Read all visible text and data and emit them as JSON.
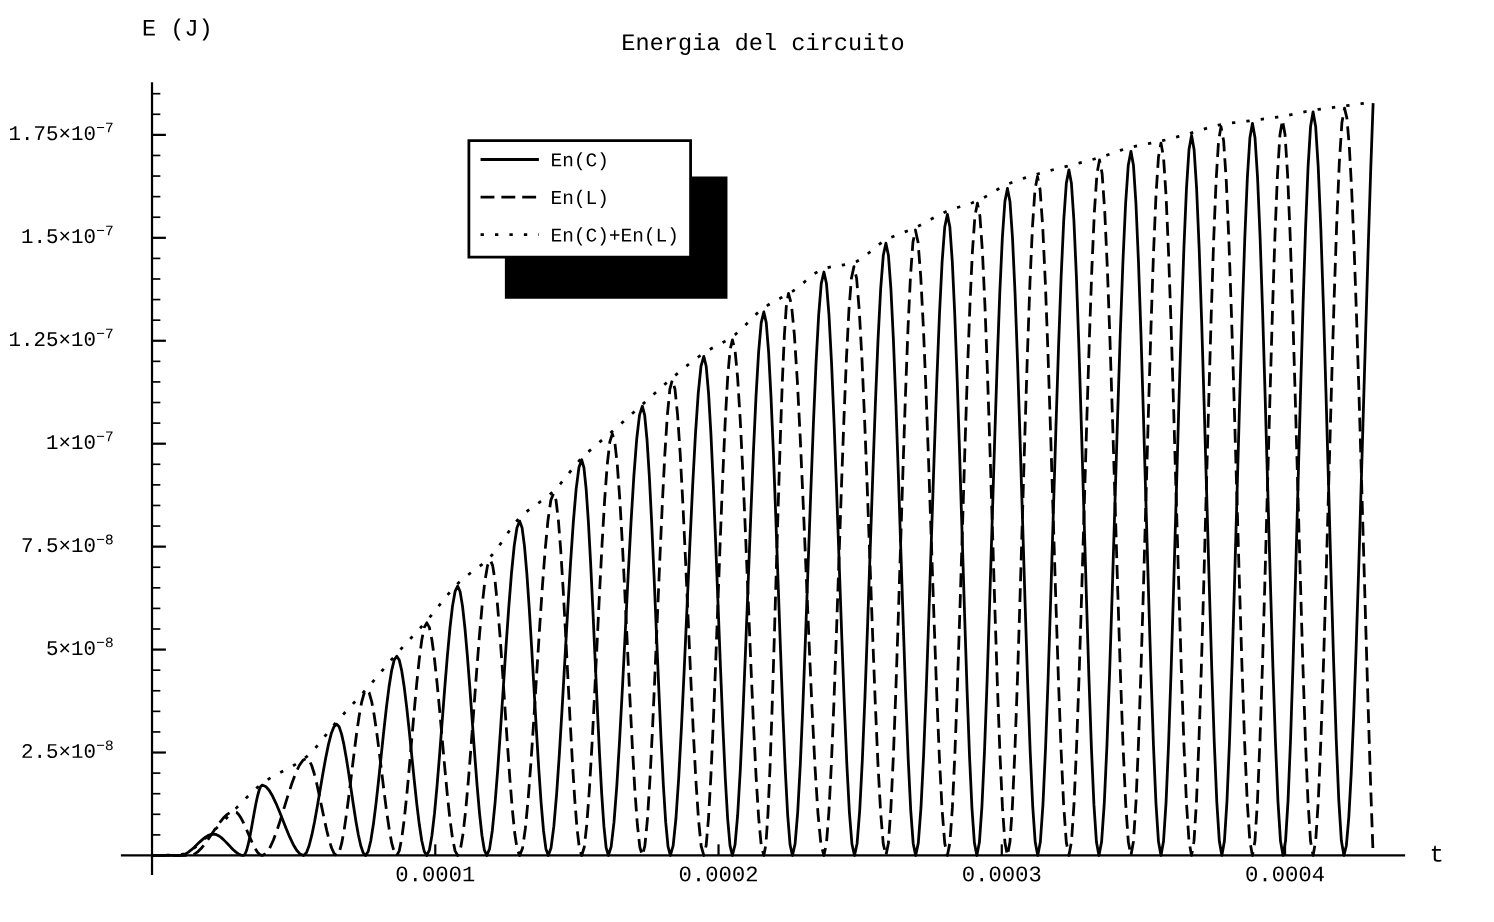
{
  "chart_data": {
    "type": "line",
    "title": "Energia del circuito",
    "xlabel": "t",
    "ylabel": "E (J)",
    "legend": "top left",
    "grid": false,
    "xlim": [
      -1.06e-05,
      0.000442
    ],
    "ylim": [
      -4.5e-09,
      1.875e-07
    ],
    "xticks": [
      0.0001,
      0.0002,
      0.0003,
      0.0004
    ],
    "yticks": [
      {
        "value": 2.5e-08,
        "label": "2.5×10$^{−8}$"
      },
      {
        "value": 5e-08,
        "label": "5×10$^{−8}$"
      },
      {
        "value": 7.5e-08,
        "label": "7.5×10$^{−8}$"
      },
      {
        "value": 1e-07,
        "label": "1×10$^{−7}$"
      },
      {
        "value": 1.25e-07,
        "label": "1.25×10$^{−7}$"
      },
      {
        "value": 1.5e-07,
        "label": "1.5×10$^{−7}$"
      },
      {
        "value": 1.75e-07,
        "label": "1.75×10$^{−7}$"
      }
    ],
    "series": [
      {
        "name": "En(C)",
        "color": "#000000",
        "line_style": "solid",
        "x": [
          0,
          9.9e-06,
          2.17e-05,
          3.23e-05,
          3.89e-05,
          5.35e-05,
          6.52e-05,
          7.54e-05,
          8.64e-05,
          9.7e-05,
          0.0001079,
          0.0001182,
          0.0001298,
          0.0001399,
          0.0001517,
          0.0001611,
          0.0001731,
          0.000183,
          0.0001948,
          0.0002049,
          0.000216,
          0.0002261,
          0.0002372,
          0.000248,
          0.0002591,
          0.0002696,
          0.0002808,
          0.0002912,
          0.000302,
          0.0003127,
          0.0003237,
          0.0003343,
          0.0003456,
          0.0003562,
          0.000367,
          0.0003777,
          0.0003885,
          0.0003993,
          0.0004099,
          0.0004208,
          0.0004311
        ],
        "values": [
          0,
          0,
          5.2e-09,
          0,
          1.71e-08,
          0,
          3.19e-08,
          0,
          4.84e-08,
          0,
          6.54e-08,
          0,
          8.12e-08,
          0,
          9.61e-08,
          0,
          1.091e-07,
          0,
          1.212e-07,
          0,
          1.32e-07,
          0,
          1.417e-07,
          0,
          1.487e-07,
          0,
          1.557e-07,
          0,
          1.62e-07,
          0,
          1.665e-07,
          0,
          1.71e-07,
          0,
          1.749e-07,
          0,
          1.778e-07,
          0,
          1.806e-07,
          0,
          1.827e-07
        ]
      },
      {
        "name": "En(L)",
        "color": "#000000",
        "line_style": "dashed",
        "x": [
          0,
          1.34e-05,
          2.9e-05,
          3.89e-05,
          5.46e-05,
          6.52e-05,
          7.58e-05,
          8.64e-05,
          9.7e-05,
          0.0001079,
          0.0001194,
          0.0001298,
          0.0001418,
          0.0001517,
          0.0001625,
          0.0001731,
          0.0001837,
          0.0001948,
          0.0002049,
          0.000216,
          0.0002247,
          0.0002372,
          0.0002478,
          0.0002591,
          0.0002695,
          0.0002808,
          0.0002914,
          0.000302,
          0.0003126,
          0.0003237,
          0.0003345,
          0.0003456,
          0.0003562,
          0.000367,
          0.0003774,
          0.0003885,
          0.0003991,
          0.0004099,
          0.000421,
          0.0004311
        ],
        "values": [
          0,
          0,
          1.07e-08,
          0,
          2.36e-08,
          0,
          4.03e-08,
          0,
          5.65e-08,
          0,
          7.18e-08,
          0,
          8.8e-08,
          0,
          1.024e-07,
          0,
          1.155e-07,
          0,
          1.252e-07,
          0,
          1.365e-07,
          0,
          1.43e-07,
          0,
          1.519e-07,
          0,
          1.584e-07,
          0,
          1.649e-07,
          0,
          1.689e-07,
          0,
          1.73e-07,
          0,
          1.77e-07,
          0,
          1.786e-07,
          0,
          1.815e-07,
          0
        ]
      },
      {
        "name": "En(C)+En(L)",
        "color": "#000000",
        "line_style": "dotted",
        "x": [
          0,
          9.9e-06,
          2.17e-05,
          2.9e-05,
          3.89e-05,
          5.46e-05,
          6.52e-05,
          7.58e-05,
          8.64e-05,
          9.7e-05,
          0.0001079,
          0.0001194,
          0.0001298,
          0.0001418,
          0.0001517,
          0.0001625,
          0.0001731,
          0.0001837,
          0.0001948,
          0.0002049,
          0.000216,
          0.0002261,
          0.0002372,
          0.0002478,
          0.0002591,
          0.0002695,
          0.0002808,
          0.0002914,
          0.000302,
          0.0003126,
          0.0003237,
          0.0003345,
          0.0003456,
          0.0003562,
          0.000367,
          0.0003774,
          0.0003885,
          0.0003991,
          0.0004099,
          0.000421,
          0.0004311
        ],
        "values": [
          0,
          2e-10,
          6e-09,
          1.1e-08,
          1.75e-08,
          2.4e-08,
          3.25e-08,
          4.05e-08,
          4.9e-08,
          5.7e-08,
          6.6e-08,
          7.25e-08,
          8.2e-08,
          8.85e-08,
          9.65e-08,
          1.03e-07,
          1.095e-07,
          1.16e-07,
          1.22e-07,
          1.26e-07,
          1.33e-07,
          1.37e-07,
          1.425e-07,
          1.44e-07,
          1.495e-07,
          1.525e-07,
          1.565e-07,
          1.59e-07,
          1.63e-07,
          1.655e-07,
          1.675e-07,
          1.695e-07,
          1.72e-07,
          1.735e-07,
          1.755e-07,
          1.775e-07,
          1.785e-07,
          1.795e-07,
          1.81e-07,
          1.82e-07,
          1.83e-07
        ]
      }
    ]
  }
}
